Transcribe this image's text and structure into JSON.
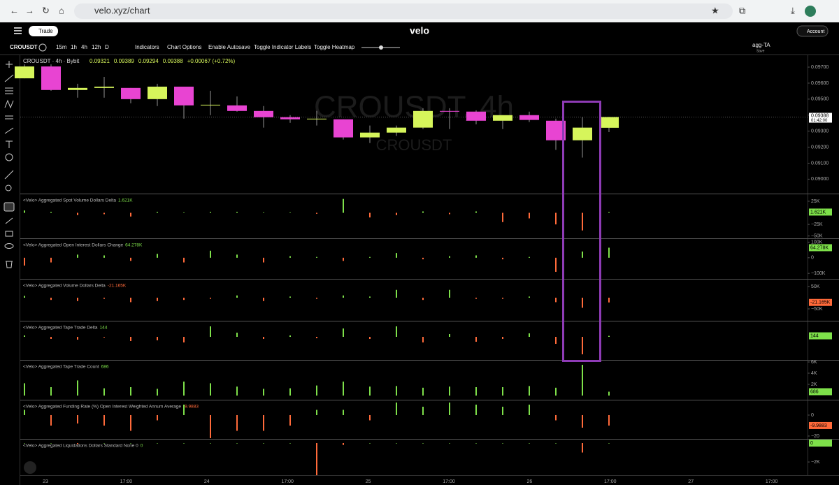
{
  "browser": {
    "url": "velo.xyz/chart"
  },
  "header": {
    "trade_button": "Trade",
    "logo": "velo",
    "account": "Account"
  },
  "toolbar": {
    "symbol": "CROUSDT",
    "intervals": [
      "15m",
      "1h",
      "4h",
      "12h",
      "D"
    ],
    "buttons": [
      "Indicators",
      "Chart Options",
      "Enable Autosave",
      "Toggle Indicator Labels",
      "Toggle Heatmap"
    ],
    "template": "agg-TA",
    "save": "Save"
  },
  "chart": {
    "legend_title": "CROUSDT · 4h · Bybit",
    "change": "+0.00067 (+0.72%)",
    "watermark": "CROUSDT, 4h",
    "watermark_sub": "CROUSDT",
    "ylim": [
      0.0891,
      0.0977
    ],
    "price_ticks": [
      {
        "value": 0.097,
        "label": "0.09700"
      },
      {
        "value": 0.096,
        "label": "0.09600"
      },
      {
        "value": 0.095,
        "label": "0.09500"
      },
      {
        "value": 0.094,
        "label": "0.09400"
      },
      {
        "value": 0.093,
        "label": "0.09300"
      },
      {
        "value": 0.092,
        "label": "0.09200"
      },
      {
        "value": 0.091,
        "label": "0.09100"
      },
      {
        "value": 0.09,
        "label": "0.09000"
      }
    ],
    "countdown": "01:42:00",
    "up_color": "#d6f55b",
    "down_color": "#e844d2",
    "open": [
      0.0963,
      0.09704,
      0.09557,
      0.0957,
      0.0957,
      0.095,
      0.09578,
      0.09461,
      0.09461,
      0.09426,
      0.09387,
      0.09374,
      0.09374,
      0.09261,
      0.09291,
      0.09322,
      0.09426,
      0.09422,
      0.09365,
      0.094,
      0.09365,
      0.09243,
      0.09321
    ],
    "high": [
      0.09717,
      0.09717,
      0.09596,
      0.09639,
      0.0957,
      0.09596,
      0.09578,
      0.09552,
      0.09517,
      0.09457,
      0.094,
      0.09426,
      0.09374,
      0.09335,
      0.09335,
      0.09443,
      0.09443,
      0.0943,
      0.094,
      0.09422,
      0.09378,
      0.09387,
      0.09389
    ],
    "low": [
      0.0963,
      0.09552,
      0.09509,
      0.09509,
      0.09474,
      0.09457,
      0.09378,
      0.094,
      0.09422,
      0.09322,
      0.09352,
      0.09335,
      0.09248,
      0.09226,
      0.0927,
      0.09313,
      0.09313,
      0.09343,
      0.09313,
      0.09357,
      0.09183,
      0.09135,
      0.09294
    ],
    "close": [
      0.09704,
      0.09557,
      0.0957,
      0.09578,
      0.095,
      0.09578,
      0.09461,
      0.09465,
      0.09426,
      0.09387,
      0.09374,
      0.09378,
      0.09261,
      0.09291,
      0.09322,
      0.09426,
      0.09422,
      0.09365,
      0.094,
      0.0937,
      0.09243,
      0.09322,
      0.09388
    ],
    "time_labels": [
      "23",
      "17:00",
      "24",
      "17:00",
      "25",
      "17:00",
      "26",
      "17:00",
      "27",
      "17:00"
    ]
  },
  "panes": [
    {
      "title": "<Velo> Aggregated Spot Volume Dollars Delta",
      "current_label": "1.621K",
      "ylim": [
        -55000,
        40000
      ],
      "ticks": [
        {
          "value": 25000,
          "label": "25K"
        },
        {
          "value": -25000,
          "label": "−25K"
        },
        {
          "value": -50000,
          "label": "−50K"
        }
      ],
      "values": [
        5000,
        2000,
        -5000,
        -3000,
        -8000,
        2000,
        1000,
        2000,
        2000,
        1000,
        1000,
        -2000,
        30000,
        -10000,
        -5000,
        3000,
        -3000,
        3000,
        -20000,
        -12000,
        -25000,
        -38000,
        1621
      ]
    },
    {
      "title": "<Velo> Aggregated Open Interest Dollars Change",
      "current_label": "64.278K",
      "ylim": [
        -135000,
        120000
      ],
      "ticks": [
        {
          "value": 100000,
          "label": "100K"
        },
        0,
        {
          "value": -100000,
          "label": "−100K"
        }
      ],
      "values": [
        -50000,
        -30000,
        20000,
        15000,
        -20000,
        25000,
        -30000,
        45000,
        20000,
        -30000,
        10000,
        5000,
        -20000,
        5000,
        30000,
        -10000,
        10000,
        15000,
        -10000,
        5000,
        -90000,
        40000,
        64278
      ]
    },
    {
      "title": "<Velo> Aggregated Volume Dollars Delta",
      "current_label": "-21.165K",
      "ylim": [
        -103000,
        81000
      ],
      "ticks": [
        {
          "value": 50000,
          "label": "50K"
        },
        {
          "value": -50000,
          "label": "−50K"
        }
      ],
      "values": [
        8000,
        -10000,
        -15000,
        -5000,
        -20000,
        -15000,
        -10000,
        -5000,
        10000,
        -15000,
        5000,
        -5000,
        10000,
        5000,
        35000,
        -10000,
        35000,
        -5000,
        -5000,
        5000,
        -20000,
        -45000,
        -21165
      ]
    },
    {
      "title": "<Velo> Aggregated Tape Trade Delta",
      "current_label": "144",
      "ylim": [
        -3300,
        2200
      ],
      "ticks": [],
      "values": [
        200,
        -300,
        -400,
        -100,
        -600,
        -500,
        -800,
        1500,
        600,
        -300,
        200,
        -200,
        1200,
        -300,
        1500,
        -800,
        400,
        -700,
        -300,
        500,
        -1000,
        -2500,
        144
      ]
    },
    {
      "title": "<Velo> Aggregated Tape Trade Count",
      "current_label": "686",
      "ylim": [
        -750,
        6250
      ],
      "ticks": [
        {
          "value": 6000,
          "label": "6K"
        },
        {
          "value": 4000,
          "label": "4K"
        },
        {
          "value": 2000,
          "label": "2K"
        }
      ],
      "values": [
        2200,
        1500,
        2700,
        1300,
        1500,
        1200,
        2500,
        2200,
        1600,
        1200,
        1300,
        1800,
        2500,
        1600,
        1700,
        1400,
        1600,
        1500,
        1500,
        1700,
        1400,
        5500,
        686
      ]
    },
    {
      "title": "<Velo> Aggregated Funding Rate (%) Open Interest Weighted Annum Average",
      "current_label": "-9.9883",
      "ylim": [
        -22.7,
        14
      ],
      "ticks": [
        0,
        {
          "value": -20,
          "label": "−20"
        }
      ],
      "values": [
        5,
        -10,
        -8,
        -10,
        -15,
        -5,
        10,
        -22,
        -15,
        -15,
        -10,
        5,
        5,
        -5,
        12,
        8,
        12,
        10,
        8,
        10,
        -5,
        -12,
        -9.9883
      ]
    },
    {
      "title": "<Velo> Aggregated Liquidations Dollars Standard None 0",
      "current_label": "0",
      "ylim": [
        -3400,
        370
      ],
      "ticks": [
        {
          "value": -2000,
          "label": "−2K"
        }
      ],
      "values": [
        0,
        0,
        -100,
        0,
        0,
        0,
        0,
        0,
        0,
        0,
        0,
        -3400,
        -200,
        0,
        0,
        0,
        0,
        0,
        0,
        0,
        0,
        -1000,
        0
      ]
    }
  ]
}
